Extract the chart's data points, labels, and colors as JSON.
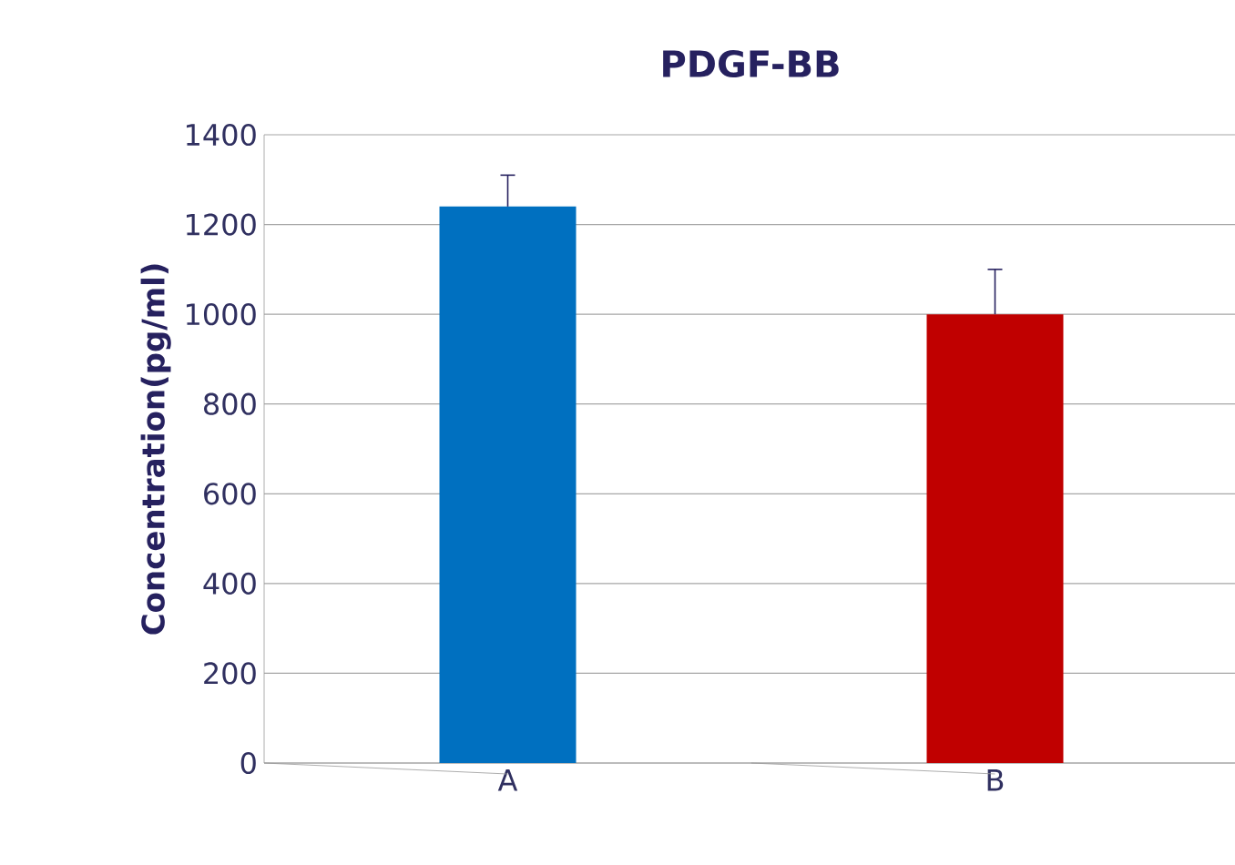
{
  "chart_data": {
    "type": "bar",
    "title": "PDGF-BB",
    "ylabel": "Concentration(pg/ml)",
    "categories": [
      "A",
      "B"
    ],
    "values": [
      1240,
      1000
    ],
    "colors": [
      "#0070c0",
      "#c00000"
    ],
    "errors": [
      [
        1240,
        1310
      ],
      [
        1000,
        1100
      ]
    ],
    "ylim": [
      0,
      1400
    ],
    "yticks": [
      0,
      200,
      400,
      600,
      800,
      1000,
      1200,
      1400
    ],
    "grid": "y"
  }
}
